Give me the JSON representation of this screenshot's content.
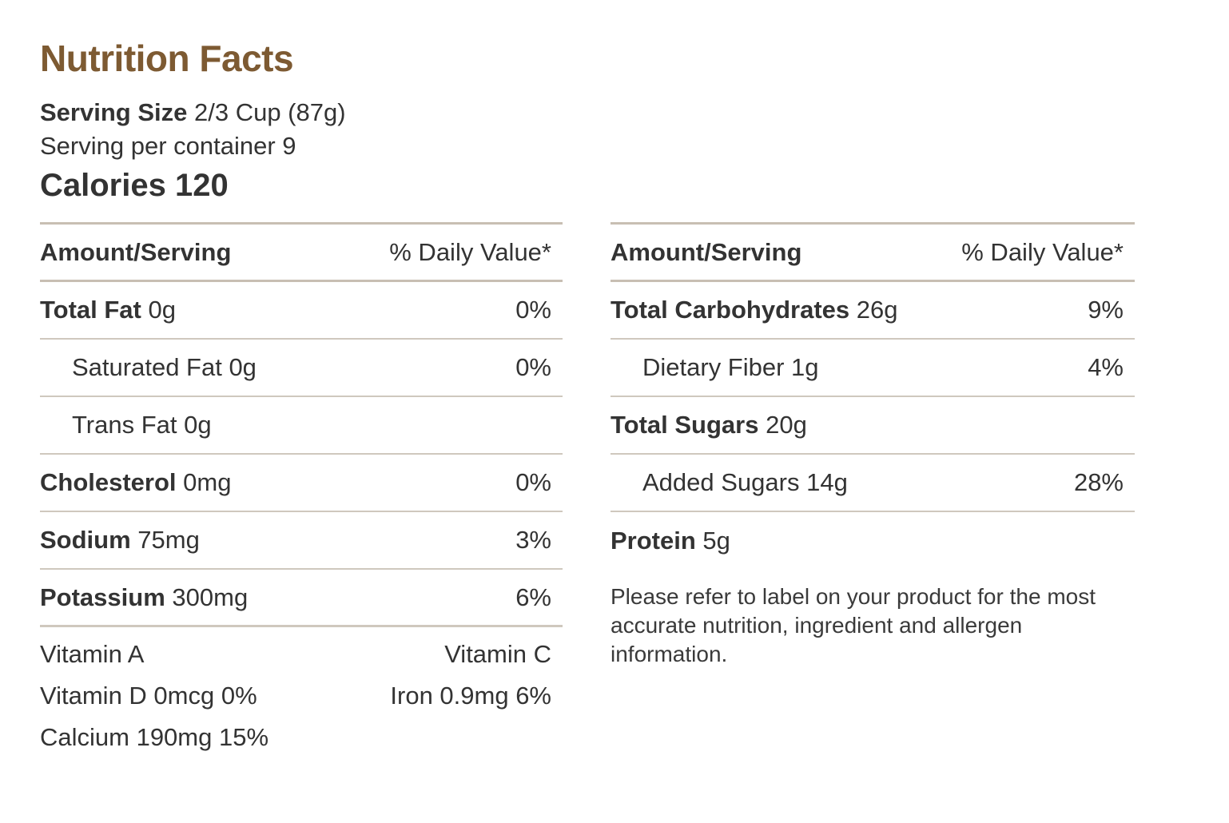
{
  "title": "Nutrition Facts",
  "serving": {
    "size_label": "Serving Size",
    "size_value": "2/3 Cup (87g)",
    "per_container": "Serving per container 9"
  },
  "calories": {
    "label": "Calories",
    "value": "120"
  },
  "header": {
    "amount": "Amount/Serving",
    "daily": "% Daily Value*"
  },
  "left_rows": [
    {
      "name": "Total Fat",
      "amount": "0g",
      "dv": "0%"
    },
    {
      "name": "Saturated Fat 0g",
      "amount": "",
      "dv": "0%"
    },
    {
      "name": "Trans Fat 0g",
      "amount": "",
      "dv": ""
    },
    {
      "name": "Cholesterol",
      "amount": "0mg",
      "dv": "0%"
    },
    {
      "name": "Sodium",
      "amount": "75mg",
      "dv": "3%"
    },
    {
      "name": "Potassium",
      "amount": "300mg",
      "dv": "6%"
    }
  ],
  "vitamins": {
    "vitamin_a": "Vitamin A",
    "vitamin_c": "Vitamin C",
    "vitamin_d": "Vitamin D 0mcg 0%",
    "iron": "Iron 0.9mg 6%",
    "calcium": "Calcium 190mg 15%"
  },
  "right_rows": [
    {
      "name": "Total Carbohydrates",
      "amount": "26g",
      "dv": "9%"
    },
    {
      "name": "Dietary Fiber 1g",
      "amount": "",
      "dv": "4%"
    },
    {
      "name": "Total Sugars",
      "amount": "20g",
      "dv": ""
    },
    {
      "name": "Added Sugars 14g",
      "amount": "",
      "dv": "28%"
    },
    {
      "name": "Protein",
      "amount": "5g",
      "dv": ""
    }
  ],
  "disclaimer": "Please refer to label on your product for the most accurate nutrition, ingredient and allergen information."
}
